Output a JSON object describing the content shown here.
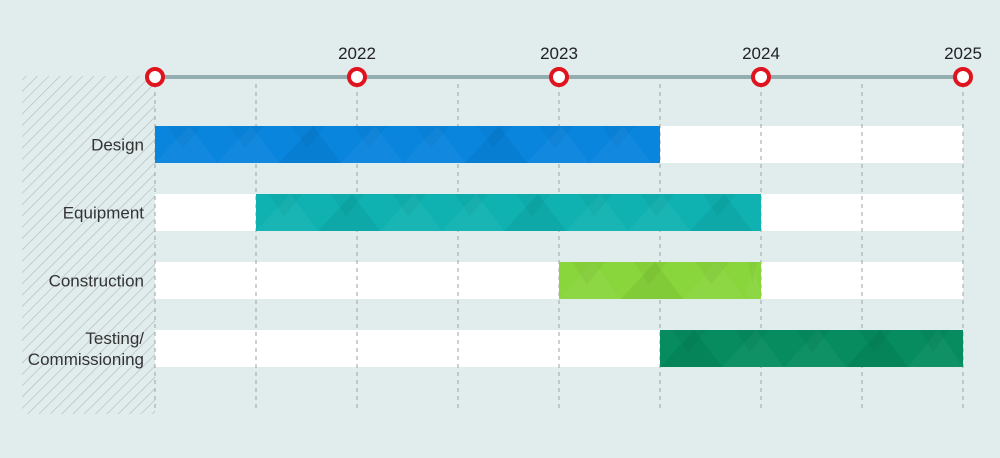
{
  "chart_data": {
    "type": "gantt",
    "title": "",
    "x_axis": {
      "years": [
        "2022",
        "2023",
        "2024",
        "2025"
      ],
      "range": [
        "2021-07",
        "2025-07"
      ],
      "tick_marks": [
        "2021-07",
        "2022-01",
        "2022-07",
        "2023-01",
        "2023-07",
        "2024-01",
        "2024-07",
        "2025-01",
        "2025-07"
      ],
      "milestone_markers": [
        "2021-07",
        "2022-07",
        "2023-07",
        "2024-07",
        "2025-07"
      ],
      "grid": true
    },
    "tasks": [
      {
        "label": "Design",
        "label_lines": [
          "Design"
        ],
        "start": "2021-07",
        "end": "2024-01",
        "color": "#0985de"
      },
      {
        "label": "Equipment",
        "label_lines": [
          "Equipment"
        ],
        "start": "2022-01",
        "end": "2024-07",
        "color": "#0fb2b1"
      },
      {
        "label": "Construction",
        "label_lines": [
          "Construction"
        ],
        "start": "2023-07",
        "end": "2024-07",
        "color": "#88d63c"
      },
      {
        "label": "Testing/ Commissioning",
        "label_lines": [
          "Testing/",
          "Commissioning"
        ],
        "start": "2024-01",
        "end": "2025-07",
        "color": "#068c5f"
      }
    ],
    "colors": {
      "background": "#e1ecec",
      "axis_line": "#94adae",
      "marker_ring": "#e0141e",
      "track": "#ffffff",
      "grid": "#9aa4a4"
    }
  }
}
